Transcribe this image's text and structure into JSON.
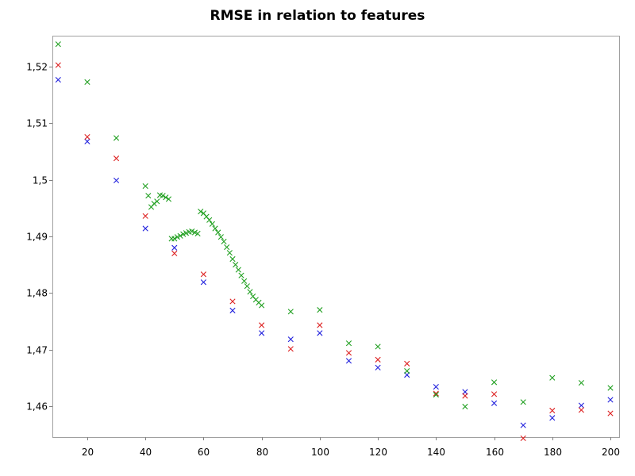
{
  "chart_data": {
    "type": "scatter",
    "title": "RMSE in relation to features",
    "xlabel": "",
    "ylabel": "",
    "xlim": [
      8,
      203
    ],
    "ylim": [
      1.4545,
      1.5255
    ],
    "x_ticks": [
      20,
      40,
      60,
      80,
      100,
      120,
      140,
      160,
      180,
      200
    ],
    "x_tick_labels": [
      "20",
      "40",
      "60",
      "80",
      "100",
      "120",
      "140",
      "160",
      "180",
      "200"
    ],
    "y_ticks": [
      1.46,
      1.47,
      1.48,
      1.49,
      1.5,
      1.51,
      1.52
    ],
    "y_tick_labels": [
      "1,46",
      "1,47",
      "1,48",
      "1,49",
      "1,5",
      "1,51",
      "1,52"
    ],
    "grid": false,
    "legend": "none",
    "marker": "x",
    "series": [
      {
        "color": "#2222dd",
        "x": [
          10,
          20,
          30,
          40,
          50,
          60,
          70,
          80,
          90,
          100,
          110,
          120,
          130,
          140,
          150,
          160,
          170,
          180,
          190,
          200
        ],
        "y": [
          1.5177,
          1.5068,
          1.4999,
          1.4914,
          1.488,
          1.4819,
          1.4769,
          1.4729,
          1.4718,
          1.4729,
          1.468,
          1.4668,
          1.4655,
          1.4634,
          1.4625,
          1.4605,
          1.4566,
          1.4579,
          1.4601,
          1.4611
        ]
      },
      {
        "color": "#dd2222",
        "x": [
          10,
          20,
          30,
          40,
          50,
          60,
          70,
          80,
          90,
          100,
          110,
          120,
          130,
          140,
          150,
          160,
          170,
          180,
          190,
          200
        ],
        "y": [
          1.5203,
          1.5076,
          1.5038,
          1.4936,
          1.487,
          1.4833,
          1.4785,
          1.4743,
          1.4701,
          1.4743,
          1.4694,
          1.4682,
          1.4675,
          1.4622,
          1.4618,
          1.4621,
          1.4543,
          1.4592,
          1.4593,
          1.4587
        ]
      },
      {
        "color": "#22a022",
        "x": [
          10,
          20,
          30,
          40,
          41,
          42,
          43,
          44,
          45,
          46,
          47,
          48,
          49,
          50,
          51,
          52,
          53,
          54,
          55,
          56,
          57,
          58,
          59,
          60,
          61,
          62,
          63,
          64,
          65,
          66,
          67,
          68,
          69,
          70,
          71,
          72,
          73,
          74,
          75,
          76,
          77,
          78,
          79,
          80,
          90,
          100,
          110,
          120,
          130,
          140,
          150,
          160,
          170,
          180,
          190,
          200
        ],
        "y": [
          1.524,
          1.5173,
          1.5074,
          1.4989,
          1.4972,
          1.4952,
          1.4958,
          1.4962,
          1.4973,
          1.4972,
          1.4969,
          1.4966,
          1.4896,
          1.4896,
          1.4899,
          1.4901,
          1.4904,
          1.4906,
          1.4908,
          1.4909,
          1.4907,
          1.4905,
          1.4944,
          1.4941,
          1.4935,
          1.4929,
          1.4922,
          1.4914,
          1.4907,
          1.4899,
          1.4891,
          1.4881,
          1.4871,
          1.486,
          1.485,
          1.4841,
          1.4831,
          1.4821,
          1.4812,
          1.4802,
          1.4794,
          1.4788,
          1.4783,
          1.4778,
          1.4767,
          1.477,
          1.4711,
          1.4705,
          1.4662,
          1.462,
          1.4599,
          1.4642,
          1.4607,
          1.465,
          1.4641,
          1.4632
        ]
      }
    ]
  }
}
